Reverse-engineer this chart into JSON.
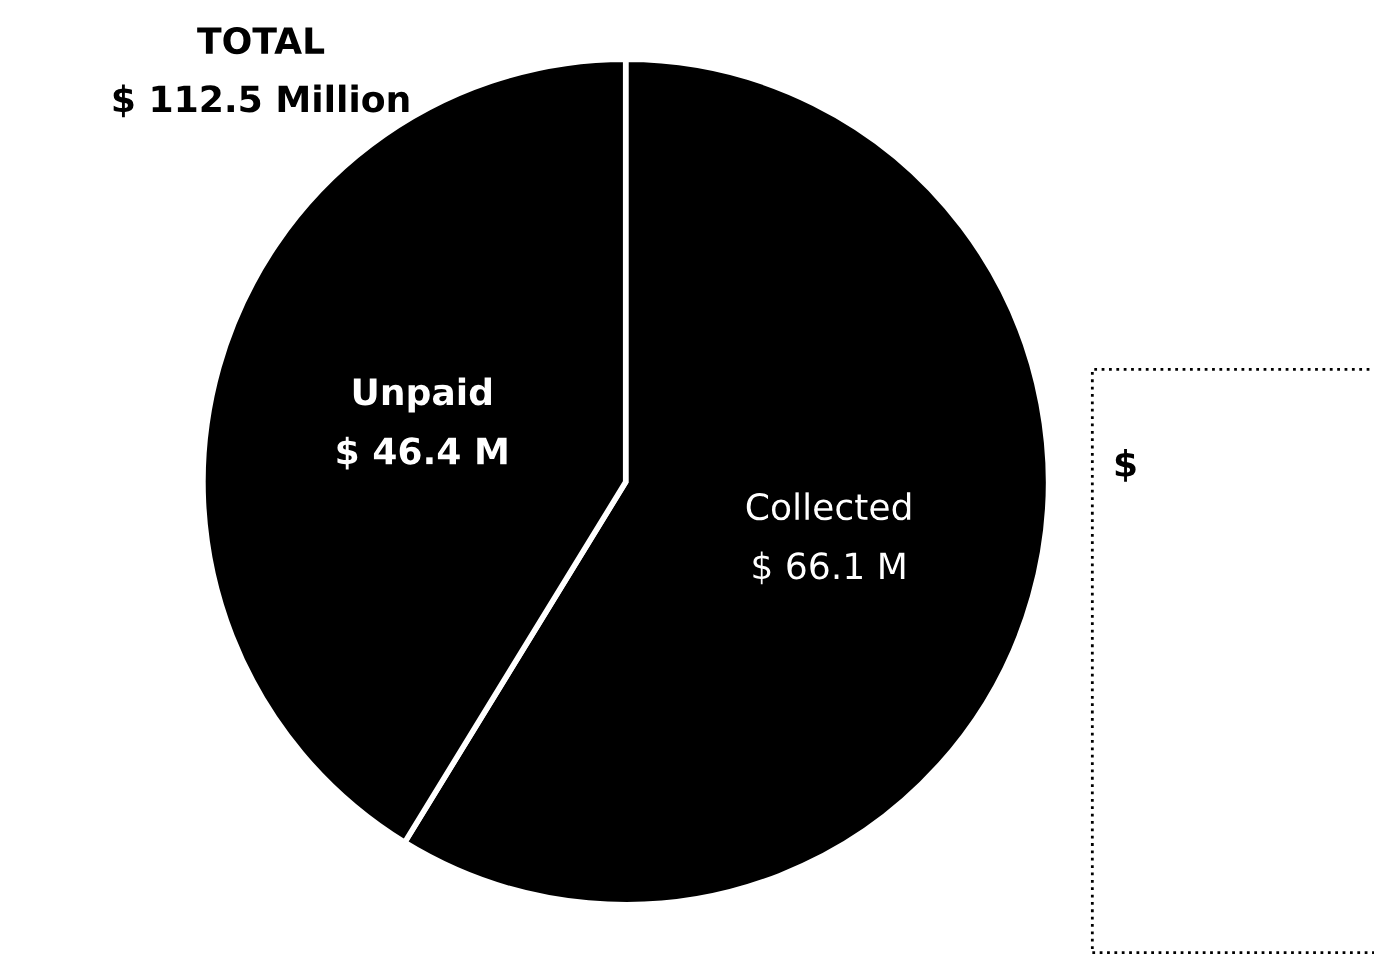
{
  "chart_data": {
    "type": "pie",
    "title": "TOTAL",
    "subtitle": "$ 112.5 Million",
    "categories": [
      "Collected",
      "Unpaid"
    ],
    "values": [
      66.1,
      46.4
    ],
    "value_labels": [
      "$ 66.1 M",
      "$ 46.4 M"
    ],
    "colors": [
      "#000000",
      "#000000"
    ],
    "annotations": [
      "$"
    ],
    "legend": false
  }
}
